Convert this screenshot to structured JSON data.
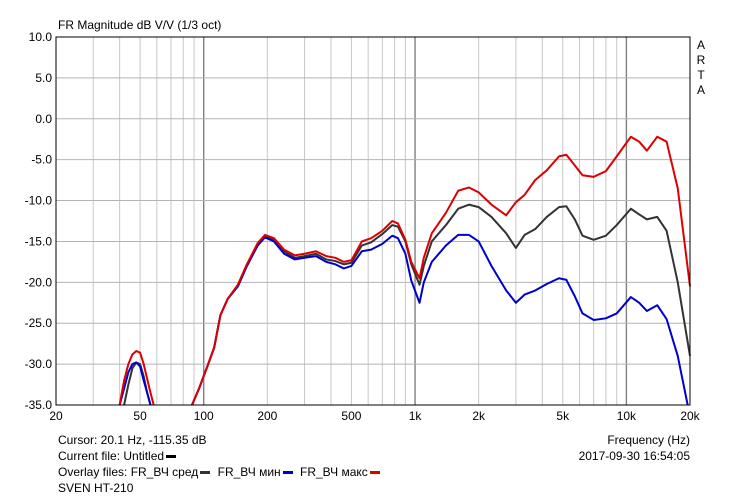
{
  "chart_data": {
    "type": "line",
    "title": "FR Magnitude dB V/V (1/3 oct)",
    "side_label": "ARTA",
    "xlabel": "Frequency (Hz)",
    "x_scale": "log",
    "xlim": [
      20,
      20000
    ],
    "ylim": [
      -35,
      10
    ],
    "grid": true,
    "x_ticks": [
      {
        "value": 20,
        "label": "20"
      },
      {
        "value": 50,
        "label": "50"
      },
      {
        "value": 100,
        "label": "100"
      },
      {
        "value": 200,
        "label": "200"
      },
      {
        "value": 500,
        "label": "500"
      },
      {
        "value": 1000,
        "label": "1k"
      },
      {
        "value": 2000,
        "label": "2k"
      },
      {
        "value": 5000,
        "label": "5k"
      },
      {
        "value": 10000,
        "label": "10k"
      },
      {
        "value": 20000,
        "label": "20k"
      }
    ],
    "y_ticks": [
      {
        "value": 10,
        "label": "10.0"
      },
      {
        "value": 5,
        "label": "5.0"
      },
      {
        "value": 0,
        "label": "0.0"
      },
      {
        "value": -5,
        "label": "-5.0"
      },
      {
        "value": -10,
        "label": "-10.0"
      },
      {
        "value": -15,
        "label": "-15.0"
      },
      {
        "value": -20,
        "label": "-20.0"
      },
      {
        "value": -25,
        "label": "-25.0"
      },
      {
        "value": -30,
        "label": "-30.0"
      },
      {
        "value": -35,
        "label": "-35.0"
      }
    ],
    "series": [
      {
        "name": "FR_ВЧ сред",
        "color": "#333333",
        "segments": [
          [
            [
              42,
              -35
            ],
            [
              44,
              -32.5
            ],
            [
              46,
              -30.5
            ],
            [
              48,
              -29.8
            ],
            [
              50,
              -30
            ],
            [
              52,
              -31.5
            ],
            [
              54,
              -33.5
            ],
            [
              56,
              -35
            ]
          ],
          [
            [
              88,
              -35
            ],
            [
              95,
              -33
            ],
            [
              105,
              -30
            ],
            [
              112,
              -28
            ],
            [
              120,
              -24
            ],
            [
              130,
              -22
            ],
            [
              145,
              -20.5
            ],
            [
              160,
              -18
            ],
            [
              180,
              -15.5
            ],
            [
              195,
              -14.3
            ],
            [
              215,
              -14.8
            ],
            [
              240,
              -16.2
            ],
            [
              270,
              -17
            ],
            [
              300,
              -16.8
            ],
            [
              340,
              -16.5
            ],
            [
              380,
              -17.2
            ],
            [
              420,
              -17.4
            ],
            [
              460,
              -17.8
            ],
            [
              500,
              -17.6
            ],
            [
              560,
              -15.5
            ],
            [
              620,
              -15.1
            ],
            [
              700,
              -14.1
            ],
            [
              780,
              -13
            ],
            [
              830,
              -13.2
            ],
            [
              900,
              -15
            ],
            [
              960,
              -17.8
            ],
            [
              1050,
              -20.3
            ],
            [
              1100,
              -18
            ],
            [
              1200,
              -15
            ],
            [
              1400,
              -13
            ],
            [
              1600,
              -11
            ],
            [
              1800,
              -10.5
            ],
            [
              2000,
              -10.8
            ],
            [
              2300,
              -12
            ],
            [
              2700,
              -14
            ],
            [
              3000,
              -15.8
            ],
            [
              3300,
              -14.2
            ],
            [
              3700,
              -13.5
            ],
            [
              4200,
              -12
            ],
            [
              4800,
              -10.8
            ],
            [
              5200,
              -10.7
            ],
            [
              5700,
              -12.3
            ],
            [
              6200,
              -14.3
            ],
            [
              7000,
              -14.8
            ],
            [
              8000,
              -14.3
            ],
            [
              9000,
              -13
            ],
            [
              10500,
              -11
            ],
            [
              11500,
              -11.7
            ],
            [
              12500,
              -12.3
            ],
            [
              14000,
              -12
            ],
            [
              15500,
              -13.7
            ],
            [
              17500,
              -20
            ],
            [
              20000,
              -29
            ]
          ]
        ]
      },
      {
        "name": "FR_ВЧ мин",
        "color": "#0000cc",
        "segments": [
          [
            [
              40,
              -35
            ],
            [
              42,
              -33
            ],
            [
              44,
              -31
            ],
            [
              46,
              -30
            ],
            [
              48,
              -29.8
            ],
            [
              50,
              -30.3
            ],
            [
              52,
              -32
            ],
            [
              54,
              -33.5
            ],
            [
              56,
              -35
            ]
          ],
          [
            [
              88,
              -35
            ],
            [
              95,
              -33
            ],
            [
              105,
              -30
            ],
            [
              112,
              -28
            ],
            [
              120,
              -24
            ],
            [
              130,
              -22
            ],
            [
              145,
              -20.5
            ],
            [
              160,
              -18
            ],
            [
              180,
              -15.5
            ],
            [
              195,
              -14.5
            ],
            [
              215,
              -15
            ],
            [
              240,
              -16.5
            ],
            [
              270,
              -17.2
            ],
            [
              300,
              -17
            ],
            [
              340,
              -16.8
            ],
            [
              380,
              -17.5
            ],
            [
              420,
              -17.8
            ],
            [
              460,
              -18.3
            ],
            [
              500,
              -18
            ],
            [
              560,
              -16.2
            ],
            [
              620,
              -16
            ],
            [
              700,
              -15.3
            ],
            [
              780,
              -14.3
            ],
            [
              830,
              -14.6
            ],
            [
              900,
              -16.5
            ],
            [
              960,
              -19.8
            ],
            [
              1050,
              -22.5
            ],
            [
              1100,
              -20
            ],
            [
              1200,
              -17.5
            ],
            [
              1400,
              -15.5
            ],
            [
              1600,
              -14.2
            ],
            [
              1800,
              -14.2
            ],
            [
              2000,
              -15
            ],
            [
              2300,
              -18
            ],
            [
              2700,
              -21
            ],
            [
              3000,
              -22.5
            ],
            [
              3300,
              -21.5
            ],
            [
              3700,
              -21
            ],
            [
              4200,
              -20.2
            ],
            [
              4800,
              -19.5
            ],
            [
              5200,
              -19.7
            ],
            [
              5700,
              -21.7
            ],
            [
              6200,
              -23.8
            ],
            [
              7000,
              -24.6
            ],
            [
              8000,
              -24.4
            ],
            [
              9000,
              -23.8
            ],
            [
              10500,
              -21.8
            ],
            [
              11500,
              -22.5
            ],
            [
              12500,
              -23.5
            ],
            [
              14000,
              -22.8
            ],
            [
              15500,
              -24.5
            ],
            [
              17500,
              -29
            ],
            [
              19500,
              -35
            ]
          ]
        ]
      },
      {
        "name": "FR_ВЧ макс",
        "color": "#dd0000",
        "segments": [
          [
            [
              40,
              -35
            ],
            [
              42,
              -32
            ],
            [
              44,
              -30
            ],
            [
              46,
              -28.8
            ],
            [
              48,
              -28.4
            ],
            [
              50,
              -28.6
            ],
            [
              52,
              -30
            ],
            [
              54,
              -31.8
            ],
            [
              56,
              -33.5
            ],
            [
              58,
              -35
            ]
          ],
          [
            [
              88,
              -35
            ],
            [
              95,
              -33
            ],
            [
              105,
              -30
            ],
            [
              112,
              -28
            ],
            [
              120,
              -24
            ],
            [
              130,
              -22
            ],
            [
              145,
              -20.3
            ],
            [
              160,
              -17.8
            ],
            [
              180,
              -15.2
            ],
            [
              195,
              -14.2
            ],
            [
              215,
              -14.6
            ],
            [
              240,
              -16
            ],
            [
              270,
              -16.7
            ],
            [
              300,
              -16.5
            ],
            [
              340,
              -16.2
            ],
            [
              380,
              -16.8
            ],
            [
              420,
              -17
            ],
            [
              460,
              -17.5
            ],
            [
              500,
              -17.3
            ],
            [
              560,
              -15
            ],
            [
              620,
              -14.6
            ],
            [
              700,
              -13.7
            ],
            [
              780,
              -12.5
            ],
            [
              830,
              -12.8
            ],
            [
              900,
              -14.8
            ],
            [
              960,
              -17.5
            ],
            [
              1050,
              -19.5
            ],
            [
              1100,
              -17
            ],
            [
              1200,
              -14
            ],
            [
              1400,
              -11.5
            ],
            [
              1600,
              -8.8
            ],
            [
              1800,
              -8.4
            ],
            [
              2000,
              -9
            ],
            [
              2300,
              -10.5
            ],
            [
              2700,
              -11.8
            ],
            [
              3000,
              -10.2
            ],
            [
              3300,
              -9.3
            ],
            [
              3700,
              -7.5
            ],
            [
              4200,
              -6.3
            ],
            [
              4800,
              -4.6
            ],
            [
              5200,
              -4.4
            ],
            [
              5700,
              -5.7
            ],
            [
              6200,
              -6.9
            ],
            [
              7000,
              -7.1
            ],
            [
              8000,
              -6.4
            ],
            [
              9000,
              -4.6
            ],
            [
              10500,
              -2.2
            ],
            [
              11500,
              -2.8
            ],
            [
              12500,
              -3.9
            ],
            [
              14000,
              -2.2
            ],
            [
              15500,
              -2.8
            ],
            [
              17500,
              -8.5
            ],
            [
              20000,
              -20.5
            ]
          ]
        ]
      }
    ]
  },
  "footer": {
    "cursor": "Cursor: 20.1 Hz, -115.35 dB",
    "current_file": "Current file: Untitled",
    "current_file_color": "#000000",
    "overlay_prefix": "Overlay files:",
    "overlay_items": [
      "FR_ВЧ сред",
      "FR_ВЧ мин",
      "FR_ВЧ макс"
    ],
    "overlay_colors": [
      "#333333",
      "#0000cc",
      "#dd0000"
    ],
    "timestamp": "2017-09-30  16:54:05",
    "model": "SVEN HT-210"
  }
}
